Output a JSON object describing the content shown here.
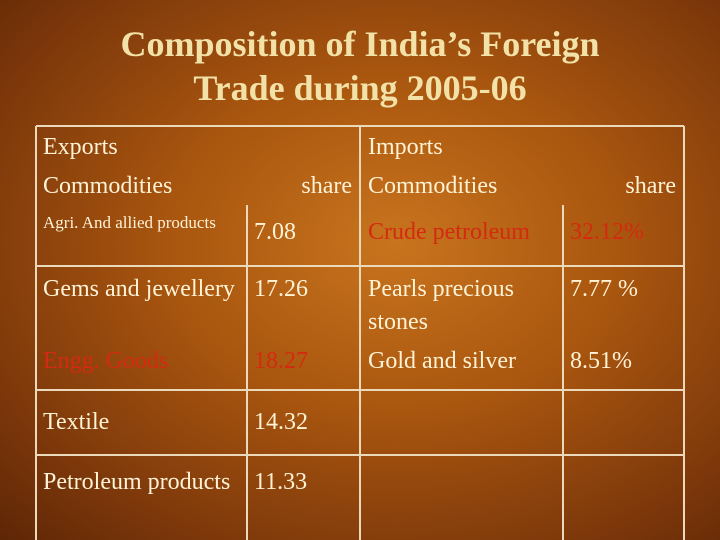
{
  "title": "Composition of India’s Foreign Trade during 2005-06",
  "table": {
    "header": [
      "Exports",
      "Commodities",
      "share",
      "Imports",
      "Commodities",
      "share"
    ],
    "rows": [
      [
        "Agri. And allied products",
        "7.08",
        "Crude petroleum",
        "32.12%"
      ],
      [
        "Gems and jewellery",
        "17.26",
        "Pearls precious stones",
        "7.77 %"
      ],
      [
        "Engg. Goods",
        "18.27",
        "Gold and silver",
        "8.51%"
      ],
      [
        "Textile",
        "14.32"
      ],
      [
        "Petroleum products",
        "11.33"
      ]
    ]
  }
}
